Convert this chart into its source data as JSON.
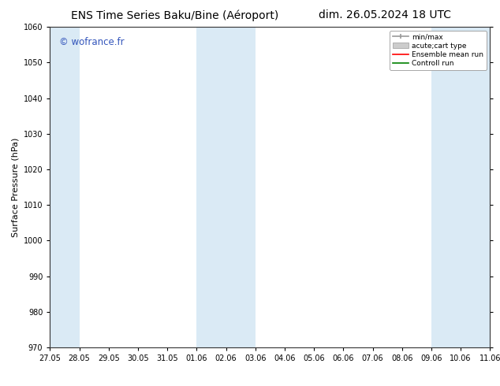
{
  "title_left": "ENS Time Series Baku/Bine (Aéroport)",
  "title_right": "dim. 26.05.2024 18 UTC",
  "ylabel": "Surface Pressure (hPa)",
  "ylim": [
    970,
    1060
  ],
  "yticks": [
    970,
    980,
    990,
    1000,
    1010,
    1020,
    1030,
    1040,
    1050,
    1060
  ],
  "xtick_labels": [
    "27.05",
    "28.05",
    "29.05",
    "30.05",
    "31.05",
    "01.06",
    "02.06",
    "03.06",
    "04.06",
    "05.06",
    "06.06",
    "07.06",
    "08.06",
    "09.06",
    "10.06",
    "11.06"
  ],
  "shaded_color": "#daeaf5",
  "shaded_ranges_idx": [
    [
      0,
      1
    ],
    [
      5,
      7
    ],
    [
      13,
      15
    ]
  ],
  "watermark": "© wofrance.fr",
  "watermark_color": "#3355bb",
  "legend_entries": [
    {
      "label": "min/max",
      "color": "#aaaaaa"
    },
    {
      "label": "acute;cart type",
      "color": "#cccccc"
    },
    {
      "label": "Ensemble mean run",
      "color": "red"
    },
    {
      "label": "Controll run",
      "color": "green"
    }
  ],
  "bg_color": "#ffffff",
  "title_fontsize": 10,
  "axis_label_fontsize": 8,
  "tick_labelsize": 7
}
